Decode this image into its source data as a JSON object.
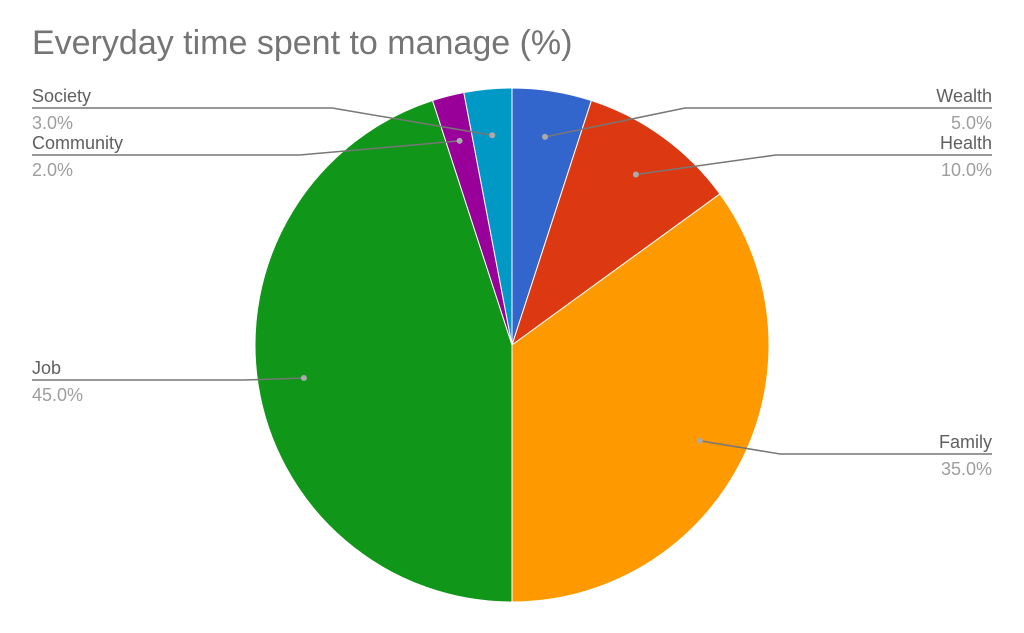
{
  "chart_data": {
    "type": "pie",
    "title": "Everyday time spent to manage (%)",
    "labels": [
      "Wealth",
      "Health",
      "Family",
      "Job",
      "Community",
      "Society"
    ],
    "values": [
      5.0,
      10.0,
      35.0,
      45.0,
      2.0,
      3.0
    ],
    "value_labels": [
      "5.0%",
      "10.0%",
      "35.0%",
      "45.0%",
      "2.0%",
      "3.0%"
    ],
    "colors": [
      "#3366cc",
      "#dc3912",
      "#ff9900",
      "#109618",
      "#990099",
      "#0099c6"
    ],
    "start_angle_deg": 0,
    "direction": "clockwise",
    "label_style": "leader-lines"
  }
}
